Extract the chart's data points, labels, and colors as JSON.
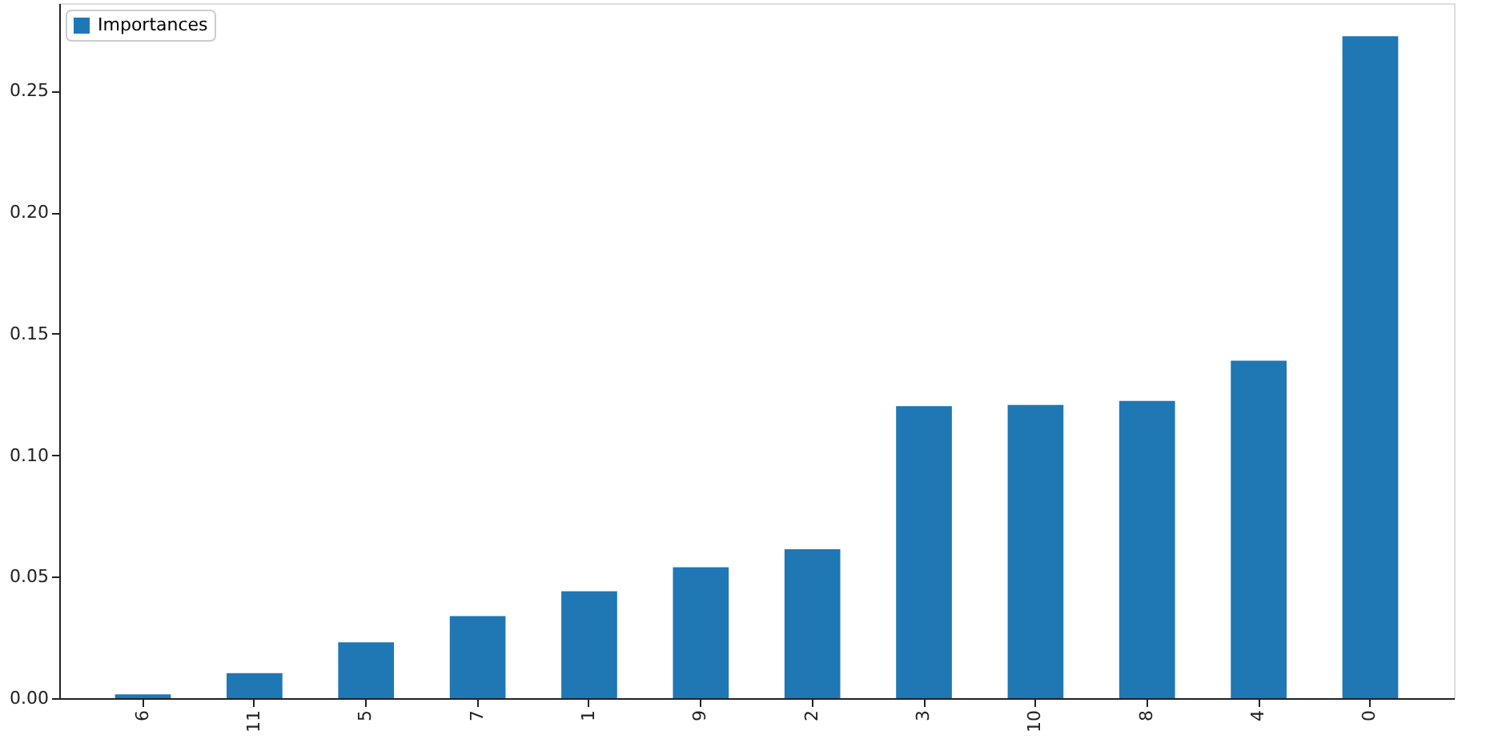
{
  "chart_data": {
    "type": "bar",
    "categories": [
      "6",
      "11",
      "5",
      "7",
      "1",
      "9",
      "2",
      "3",
      "10",
      "8",
      "4",
      "0"
    ],
    "series": [
      {
        "name": "Importances",
        "color": "#1f77b4",
        "values": [
          0.0016,
          0.0103,
          0.023,
          0.0338,
          0.044,
          0.0539,
          0.0613,
          0.1202,
          0.1207,
          0.1223,
          0.1389,
          0.2724
        ]
      }
    ],
    "ylim": [
      0,
      0.286
    ],
    "yticks": [
      {
        "value": 0,
        "label": "0.00"
      },
      {
        "value": 0.05,
        "label": "0.05"
      },
      {
        "value": 0.1,
        "label": "0.10"
      },
      {
        "value": 0.15,
        "label": "0.15"
      },
      {
        "value": 0.2,
        "label": "0.20"
      },
      {
        "value": 0.25,
        "label": "0.25"
      }
    ],
    "grid": false,
    "legend": "top left"
  }
}
